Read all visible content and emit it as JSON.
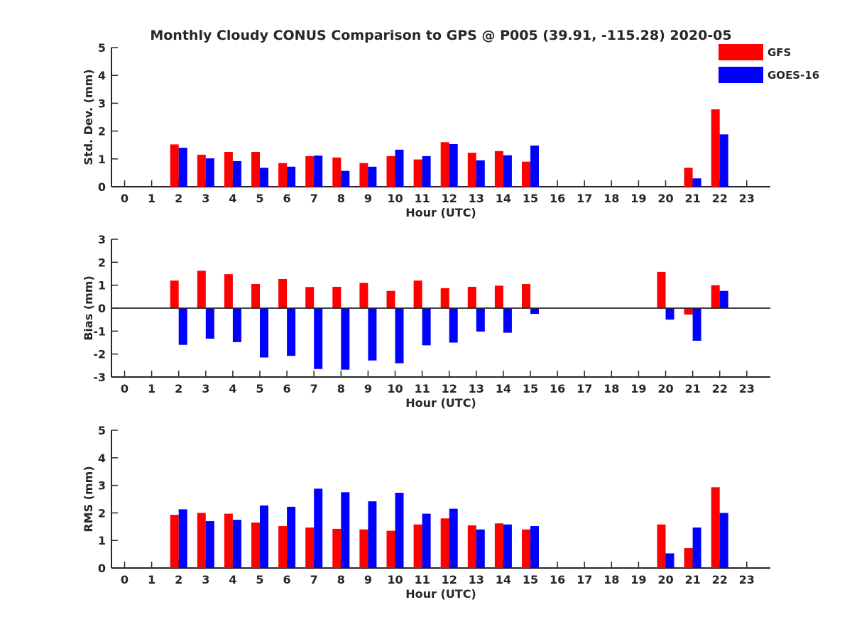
{
  "title": "Monthly Cloudy CONUS Comparison to GPS @ P005 (39.91, -115.28) 2020-05",
  "legend": {
    "placement": "top-right",
    "items": [
      {
        "label": "GFS",
        "color": "#ff0000"
      },
      {
        "label": "GOES-16",
        "color": "#0000ff"
      }
    ]
  },
  "chart_data": [
    {
      "type": "bar",
      "xlabel": "Hour (UTC)",
      "ylabel": "Std. Dev. (mm)",
      "ylim": [
        0,
        5
      ],
      "yticks": [
        0,
        1,
        2,
        3,
        4,
        5
      ],
      "categories": [
        "0",
        "1",
        "2",
        "3",
        "4",
        "5",
        "6",
        "7",
        "8",
        "9",
        "10",
        "11",
        "12",
        "13",
        "14",
        "15",
        "16",
        "17",
        "18",
        "19",
        "20",
        "21",
        "22",
        "23"
      ],
      "series": [
        {
          "name": "GFS",
          "color": "#ff0000",
          "values": [
            null,
            null,
            1.52,
            1.15,
            1.25,
            1.25,
            0.85,
            1.1,
            1.05,
            0.85,
            1.1,
            0.98,
            1.6,
            1.22,
            1.28,
            0.9,
            null,
            null,
            null,
            null,
            null,
            0.68,
            2.78,
            null
          ]
        },
        {
          "name": "GOES-16",
          "color": "#0000ff",
          "values": [
            null,
            null,
            1.4,
            1.02,
            0.92,
            0.68,
            0.72,
            1.12,
            0.57,
            0.72,
            1.33,
            1.1,
            1.53,
            0.95,
            1.13,
            1.48,
            null,
            null,
            null,
            null,
            null,
            0.3,
            1.88,
            null
          ]
        }
      ]
    },
    {
      "type": "bar",
      "xlabel": "Hour (UTC)",
      "ylabel": "Bias (mm)",
      "ylim": [
        -3,
        3
      ],
      "yticks": [
        -3,
        -2,
        -1,
        0,
        1,
        2,
        3
      ],
      "zero_line": true,
      "categories": [
        "0",
        "1",
        "2",
        "3",
        "4",
        "5",
        "6",
        "7",
        "8",
        "9",
        "10",
        "11",
        "12",
        "13",
        "14",
        "15",
        "16",
        "17",
        "18",
        "19",
        "20",
        "21",
        "22",
        "23"
      ],
      "series": [
        {
          "name": "GFS",
          "color": "#ff0000",
          "values": [
            null,
            null,
            1.2,
            1.63,
            1.48,
            1.05,
            1.27,
            0.92,
            0.93,
            1.1,
            0.75,
            1.2,
            0.87,
            0.93,
            0.98,
            1.05,
            null,
            null,
            null,
            null,
            1.58,
            -0.28,
            1.0,
            null
          ]
        },
        {
          "name": "GOES-16",
          "color": "#0000ff",
          "values": [
            null,
            null,
            -1.6,
            -1.33,
            -1.48,
            -2.15,
            -2.08,
            -2.65,
            -2.68,
            -2.28,
            -2.4,
            -1.62,
            -1.5,
            -1.02,
            -1.07,
            -0.25,
            null,
            null,
            null,
            null,
            -0.5,
            -1.42,
            0.75,
            null
          ]
        }
      ]
    },
    {
      "type": "bar",
      "xlabel": "Hour (UTC)",
      "ylabel": "RMS (mm)",
      "ylim": [
        0,
        5
      ],
      "yticks": [
        0,
        1,
        2,
        3,
        4,
        5
      ],
      "categories": [
        "0",
        "1",
        "2",
        "3",
        "4",
        "5",
        "6",
        "7",
        "8",
        "9",
        "10",
        "11",
        "12",
        "13",
        "14",
        "15",
        "16",
        "17",
        "18",
        "19",
        "20",
        "21",
        "22",
        "23"
      ],
      "series": [
        {
          "name": "GFS",
          "color": "#ff0000",
          "values": [
            null,
            null,
            1.93,
            2.0,
            1.97,
            1.65,
            1.52,
            1.47,
            1.42,
            1.4,
            1.35,
            1.58,
            1.8,
            1.55,
            1.62,
            1.4,
            null,
            null,
            null,
            null,
            1.58,
            0.72,
            2.93,
            null
          ]
        },
        {
          "name": "GOES-16",
          "color": "#0000ff",
          "values": [
            null,
            null,
            2.13,
            1.7,
            1.75,
            2.27,
            2.22,
            2.88,
            2.75,
            2.42,
            2.73,
            1.97,
            2.15,
            1.4,
            1.58,
            1.52,
            null,
            null,
            null,
            null,
            0.53,
            1.47,
            2.0,
            null
          ]
        }
      ]
    }
  ]
}
